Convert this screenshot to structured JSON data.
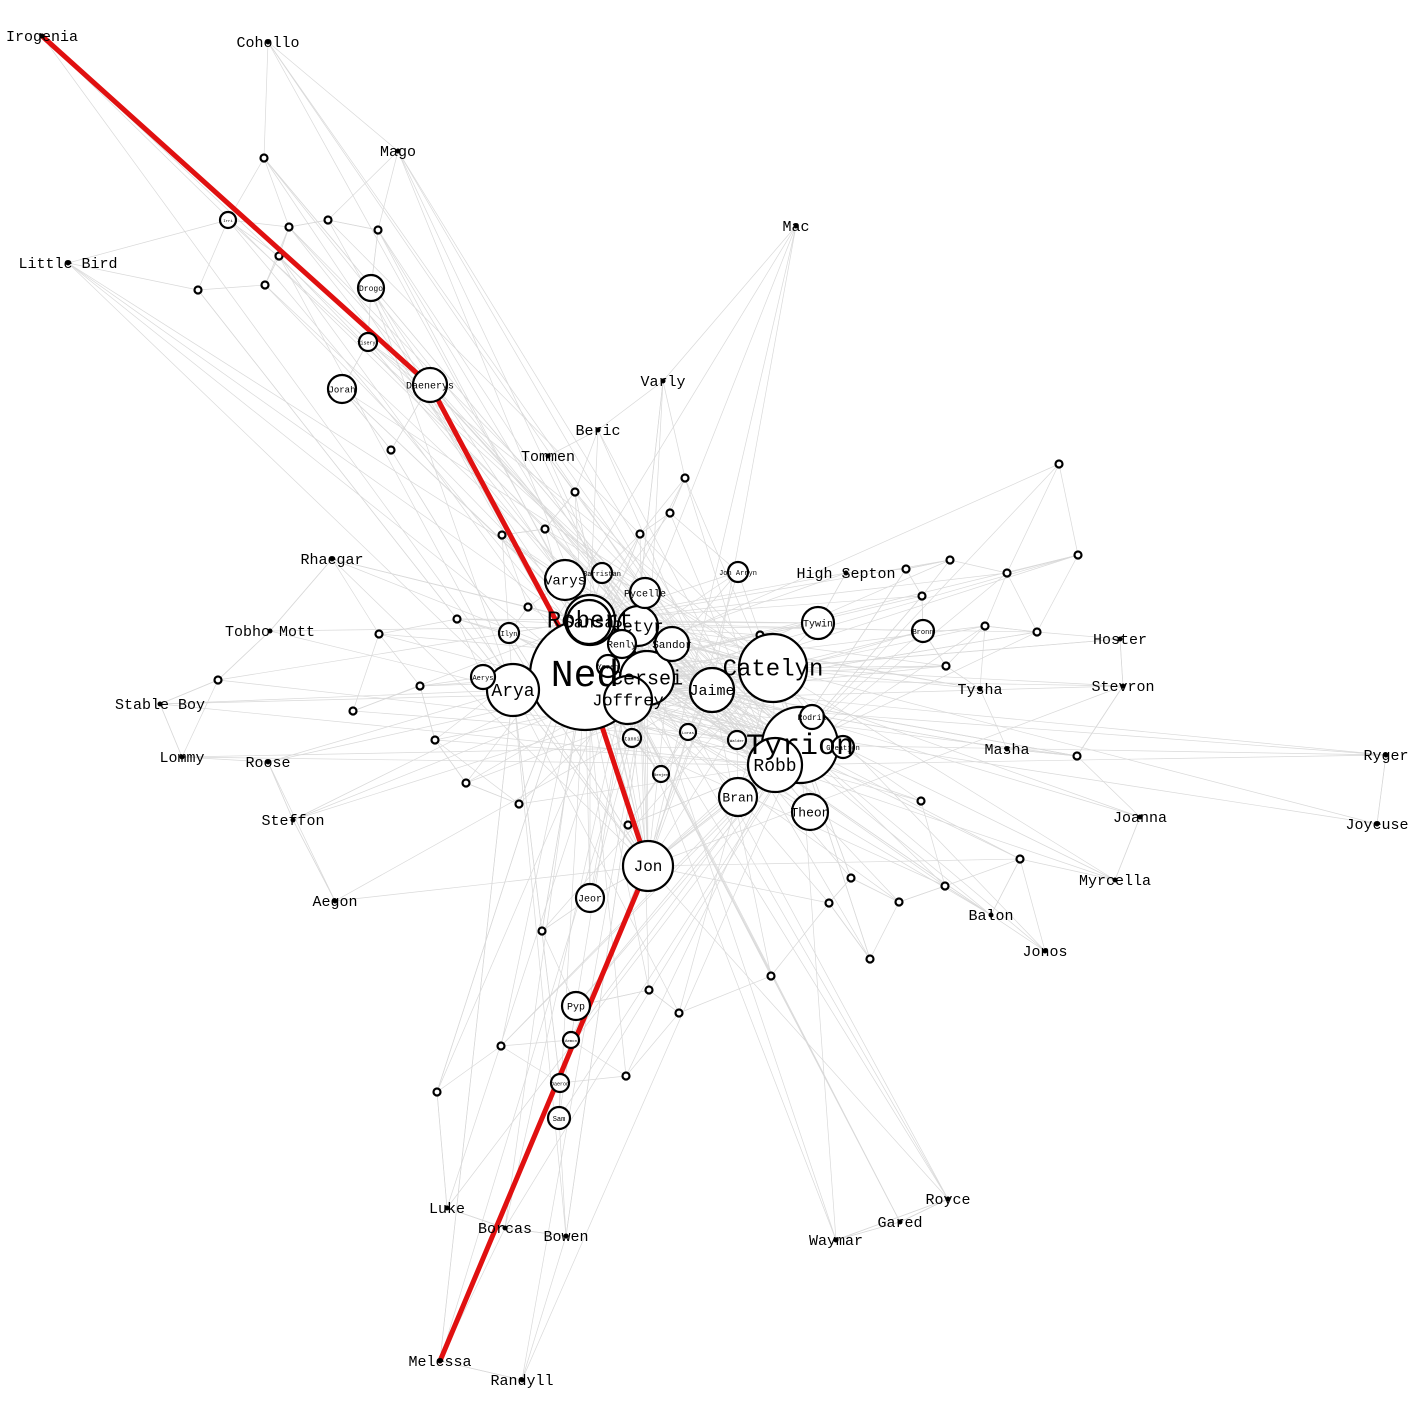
{
  "graph": {
    "highlight_color": "#e01010",
    "edge_color": "#d9d9d9",
    "nodes": [
      {
        "id": "ned",
        "label": "Ned",
        "kind": "circle"
      },
      {
        "id": "tyrion",
        "label": "Tyrion",
        "kind": "circle"
      },
      {
        "id": "catelyn",
        "label": "Catelyn",
        "kind": "circle"
      },
      {
        "id": "robert",
        "label": "Robert",
        "kind": "circle"
      },
      {
        "id": "cersei",
        "label": "Cersei",
        "kind": "circle"
      },
      {
        "id": "robb",
        "label": "Robb",
        "kind": "circle"
      },
      {
        "id": "arya",
        "label": "Arya",
        "kind": "circle"
      },
      {
        "id": "jon",
        "label": "Jon",
        "kind": "circle"
      },
      {
        "id": "sansa",
        "label": "Sansa",
        "kind": "circle"
      },
      {
        "id": "joffrey",
        "label": "Joffrey",
        "kind": "circle"
      },
      {
        "id": "jaime",
        "label": "Jaime",
        "kind": "circle"
      },
      {
        "id": "petyr",
        "label": "Petyr",
        "kind": "circle"
      },
      {
        "id": "varys",
        "label": "Varys",
        "kind": "circle"
      },
      {
        "id": "bran",
        "label": "Bran",
        "kind": "circle"
      },
      {
        "id": "theon",
        "label": "Theon",
        "kind": "circle"
      },
      {
        "id": "sandor",
        "label": "Sandor",
        "kind": "circle"
      },
      {
        "id": "daenerys",
        "label": "Daenerys",
        "kind": "circle"
      },
      {
        "id": "tywin",
        "label": "Tywin",
        "kind": "circle"
      },
      {
        "id": "pycelle",
        "label": "Pycelle",
        "kind": "circle"
      },
      {
        "id": "renly",
        "label": "Renly",
        "kind": "circle"
      },
      {
        "id": "drogo",
        "label": "Drogo",
        "kind": "circle"
      },
      {
        "id": "jorah",
        "label": "Jorah",
        "kind": "circle"
      },
      {
        "id": "jeor",
        "label": "Jeor",
        "kind": "circle"
      },
      {
        "id": "pyp",
        "label": "Pyp",
        "kind": "circle"
      },
      {
        "id": "rodrik",
        "label": "Rodrik",
        "kind": "circle"
      },
      {
        "id": "greatjon",
        "label": "Greatjon",
        "kind": "circle"
      },
      {
        "id": "sam",
        "label": "Sam",
        "kind": "circle"
      },
      {
        "id": "bronn",
        "label": "Bronn",
        "kind": "circle"
      },
      {
        "id": "yoren",
        "label": "Yoren",
        "kind": "circle"
      },
      {
        "id": "aerys",
        "label": "Aerys",
        "kind": "circle"
      },
      {
        "id": "ilyn",
        "label": "Ilyn",
        "kind": "circle"
      },
      {
        "id": "viserys",
        "label": "Viserys",
        "kind": "circle"
      },
      {
        "id": "tyrion-n1",
        "label": "Irri",
        "kind": "circle"
      },
      {
        "id": "loras",
        "label": "Loras",
        "kind": "circle"
      },
      {
        "id": "walder",
        "label": "Walder",
        "kind": "circle"
      },
      {
        "id": "stannis",
        "label": "Stannis",
        "kind": "circle"
      },
      {
        "id": "barristan",
        "label": "Barristan",
        "kind": "circle"
      },
      {
        "id": "jonarryn",
        "label": "Jon Arryn",
        "kind": "circle"
      },
      {
        "id": "benjen",
        "label": "Benjen",
        "kind": "circle"
      },
      {
        "id": "aemon",
        "label": "Aemon",
        "kind": "circle"
      },
      {
        "id": "daeron",
        "label": "Daeron",
        "kind": "circle"
      },
      {
        "id": "irogenia",
        "label": "Irogenia",
        "kind": "dot"
      },
      {
        "id": "cohollo",
        "label": "Cohollo",
        "kind": "dot"
      },
      {
        "id": "mago",
        "label": "Mago",
        "kind": "dot"
      },
      {
        "id": "mac",
        "label": "Mac",
        "kind": "dot"
      },
      {
        "id": "littlebird",
        "label": "Little Bird",
        "kind": "dot"
      },
      {
        "id": "varly",
        "label": "Varly",
        "kind": "dot"
      },
      {
        "id": "beric",
        "label": "Beric",
        "kind": "dot"
      },
      {
        "id": "tommen",
        "label": "Tommen",
        "kind": "dot"
      },
      {
        "id": "rhaegar",
        "label": "Rhaegar",
        "kind": "dot"
      },
      {
        "id": "highsepton",
        "label": "High Septon",
        "kind": "dot"
      },
      {
        "id": "tobhomott",
        "label": "Tobho Mott",
        "kind": "dot"
      },
      {
        "id": "hoster",
        "label": "Hoster",
        "kind": "dot"
      },
      {
        "id": "tysha",
        "label": "Tysha",
        "kind": "dot"
      },
      {
        "id": "stevron",
        "label": "Stevron",
        "kind": "dot"
      },
      {
        "id": "stableboy",
        "label": "Stable Boy",
        "kind": "dot"
      },
      {
        "id": "lommy",
        "label": "Lommy",
        "kind": "dot"
      },
      {
        "id": "roose",
        "label": "Roose",
        "kind": "dot"
      },
      {
        "id": "masha",
        "label": "Masha",
        "kind": "dot"
      },
      {
        "id": "ryger",
        "label": "Ryger",
        "kind": "dot"
      },
      {
        "id": "steffon",
        "label": "Steffon",
        "kind": "dot"
      },
      {
        "id": "joanna",
        "label": "Joanna",
        "kind": "dot"
      },
      {
        "id": "joyeuse",
        "label": "Joyeuse",
        "kind": "dot"
      },
      {
        "id": "myrcella",
        "label": "Myrcella",
        "kind": "dot"
      },
      {
        "id": "aegon",
        "label": "Aegon",
        "kind": "dot"
      },
      {
        "id": "balon",
        "label": "Balon",
        "kind": "dot"
      },
      {
        "id": "jonos",
        "label": "Jonos",
        "kind": "dot"
      },
      {
        "id": "royce",
        "label": "Royce",
        "kind": "dot"
      },
      {
        "id": "luke",
        "label": "Luke",
        "kind": "dot"
      },
      {
        "id": "gared",
        "label": "Gared",
        "kind": "dot"
      },
      {
        "id": "borcas",
        "label": "Borcas",
        "kind": "dot"
      },
      {
        "id": "bowen",
        "label": "Bowen",
        "kind": "dot"
      },
      {
        "id": "waymar",
        "label": "Waymar",
        "kind": "dot"
      },
      {
        "id": "melessa",
        "label": "Melessa",
        "kind": "dot"
      },
      {
        "id": "randyll",
        "label": "Randyll",
        "kind": "dot"
      }
    ],
    "highlighted_path": [
      "irogenia",
      "daenerys",
      "ned",
      "jon",
      "melessa"
    ]
  }
}
